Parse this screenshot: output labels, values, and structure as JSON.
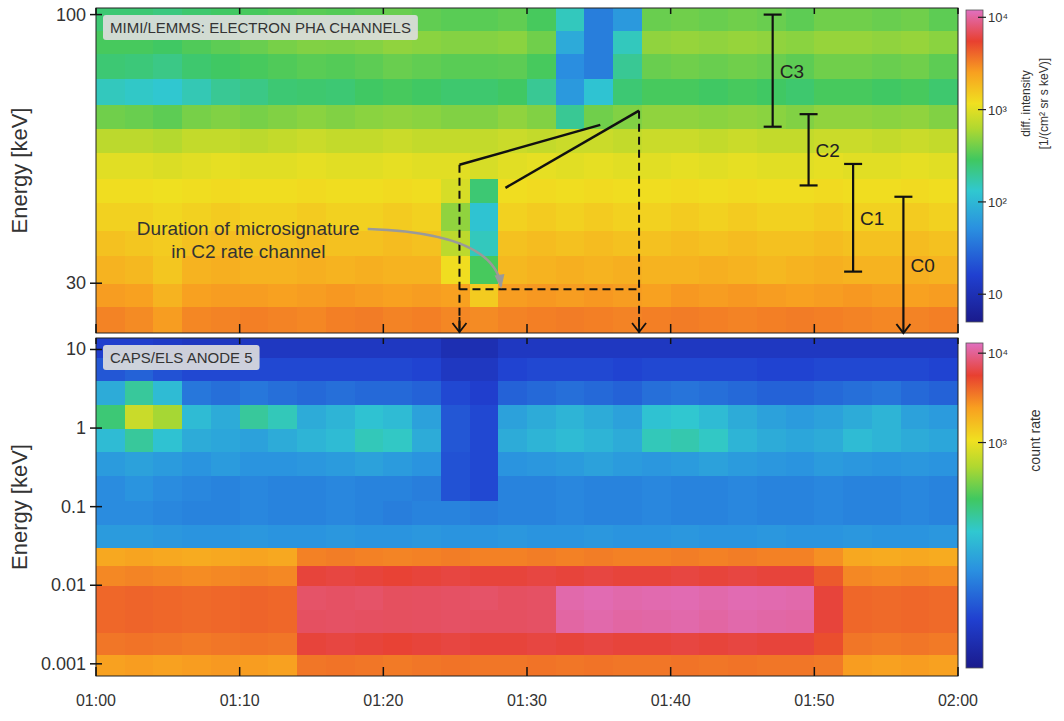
{
  "chart_data": [
    {
      "type": "heatmap",
      "title": "MIMI/LEMMS: ELECTRON PHA CHANNELS",
      "y_label": "Energy [keV]",
      "log": "y",
      "tick_labels": "y",
      "xlim": [
        0,
        60
      ],
      "xticks": [
        0,
        10,
        20,
        30,
        40,
        50,
        60
      ],
      "ylim": [
        24,
        103
      ],
      "yticks": [
        30,
        100
      ],
      "x_bins": [
        0,
        2,
        4,
        6,
        8,
        10,
        12,
        14,
        16,
        18,
        20,
        22,
        24,
        26,
        28,
        30,
        32,
        34,
        36,
        38,
        40,
        42,
        44,
        46,
        48,
        50,
        52,
        54,
        56,
        58,
        60
      ],
      "y_bins": [
        24,
        27,
        30,
        34,
        38,
        43,
        48,
        54,
        60,
        67,
        75,
        84,
        93,
        103
      ],
      "values": [
        [
          3200,
          3000,
          2600,
          3100,
          3200,
          3300,
          3200,
          3100,
          3300,
          3400,
          3200,
          3300,
          3100,
          3000,
          3200,
          3300,
          3400,
          3300,
          3200,
          3300,
          3400,
          3300,
          3200,
          3300,
          3400,
          3300,
          3200,
          3100,
          3200,
          3300
        ],
        [
          2600,
          2500,
          2000,
          2500,
          2600,
          2600,
          2500,
          2600,
          2700,
          2600,
          2500,
          2600,
          2500,
          1500,
          2600,
          2700,
          2600,
          2700,
          2600,
          2500,
          2700,
          2600,
          2700,
          2600,
          2500,
          2600,
          2700,
          2600,
          2500,
          2600
        ],
        [
          2000,
          1900,
          1600,
          2000,
          2100,
          2000,
          2000,
          2100,
          2000,
          2100,
          2000,
          2000,
          1200,
          300,
          1900,
          2000,
          2100,
          2000,
          2100,
          2000,
          2000,
          2100,
          2000,
          1900,
          2000,
          2100,
          2000,
          2000,
          2100,
          2000
        ],
        [
          1700,
          1600,
          1500,
          1700,
          1800,
          1700,
          1700,
          1800,
          1700,
          1700,
          1800,
          1700,
          700,
          150,
          1700,
          1800,
          1700,
          1800,
          1700,
          1700,
          1800,
          1700,
          1800,
          1700,
          1700,
          1800,
          1700,
          1700,
          1800,
          1700
        ],
        [
          1400,
          1400,
          1300,
          1400,
          1500,
          1400,
          1400,
          1500,
          1400,
          1400,
          1500,
          1400,
          500,
          120,
          1400,
          1500,
          1400,
          1500,
          1400,
          1400,
          1500,
          1400,
          1500,
          1400,
          1400,
          1500,
          1400,
          1400,
          1500,
          1400
        ],
        [
          1200,
          1200,
          1150,
          1200,
          1250,
          1200,
          1200,
          1250,
          1200,
          1200,
          1250,
          1200,
          900,
          250,
          1200,
          1250,
          1200,
          1250,
          1200,
          1200,
          1250,
          1200,
          1250,
          1200,
          1200,
          1250,
          1200,
          1200,
          1250,
          1200
        ],
        [
          1000,
          1000,
          950,
          1000,
          1050,
          1000,
          1000,
          1050,
          1000,
          1000,
          1050,
          1000,
          1000,
          900,
          1000,
          1050,
          1000,
          1050,
          1000,
          1000,
          1050,
          1000,
          1050,
          1000,
          1000,
          1050,
          1000,
          1000,
          1050,
          1000
        ],
        [
          700,
          700,
          650,
          750,
          750,
          700,
          750,
          800,
          750,
          750,
          800,
          750,
          750,
          750,
          800,
          750,
          800,
          800,
          750,
          800,
          800,
          750,
          800,
          750,
          750,
          800,
          800,
          750,
          800,
          750
        ],
        [
          400,
          380,
          350,
          420,
          450,
          420,
          450,
          480,
          450,
          480,
          500,
          480,
          450,
          450,
          500,
          450,
          200,
          400,
          450,
          500,
          500,
          480,
          500,
          480,
          450,
          500,
          500,
          480,
          500,
          450
        ],
        [
          150,
          140,
          130,
          160,
          200,
          220,
          250,
          260,
          250,
          280,
          300,
          280,
          260,
          260,
          280,
          200,
          60,
          120,
          250,
          300,
          300,
          280,
          300,
          280,
          260,
          300,
          300,
          280,
          300,
          260
        ],
        [
          250,
          240,
          220,
          260,
          280,
          300,
          320,
          340,
          330,
          350,
          380,
          360,
          340,
          340,
          350,
          300,
          50,
          40,
          200,
          380,
          400,
          380,
          400,
          380,
          350,
          400,
          400,
          380,
          400,
          350
        ],
        [
          300,
          300,
          280,
          320,
          350,
          380,
          420,
          450,
          440,
          460,
          500,
          480,
          460,
          460,
          480,
          400,
          80,
          40,
          150,
          500,
          520,
          500,
          520,
          500,
          480,
          520,
          520,
          500,
          520,
          480
        ],
        [
          250,
          250,
          230,
          260,
          280,
          300,
          320,
          340,
          330,
          350,
          380,
          360,
          340,
          340,
          360,
          300,
          150,
          40,
          60,
          380,
          400,
          380,
          400,
          380,
          350,
          400,
          400,
          380,
          400,
          350
        ]
      ],
      "color_range": [
        5,
        12000
      ],
      "color_ticks": [
        10,
        {
          "value": 100,
          "label": "10²"
        },
        {
          "value": 1000,
          "label": "10³"
        },
        {
          "value": 10000,
          "label": "10⁴"
        }
      ],
      "color_label": [
        "diff. intensity",
        "[1/(cm² sr s keV)]"
      ],
      "channels": [
        {
          "name": "C3",
          "x": 47.1,
          "range": [
            60.5,
            100
          ]
        },
        {
          "name": "C2",
          "x": 49.6,
          "range": [
            46.5,
            64
          ]
        },
        {
          "name": "C1",
          "x": 52.7,
          "range": [
            31.6,
            51.2
          ]
        },
        {
          "name": "C0",
          "x": 56.2,
          "range": [
            24,
            44.2
          ]
        }
      ],
      "microsignature": {
        "text": [
          "Duration of microsignature",
          "in C2 rate channel"
        ],
        "text_at": [
          10.6,
          36.5
        ],
        "arrow_to": [
          28.2,
          29.4
        ],
        "x": [
          25.3,
          37.8
        ],
        "y_bottom": 29.2,
        "y_top": [
          51,
          65
        ],
        "lines": [
          [
            [
              25.3,
              51
            ],
            [
              35.1,
              61
            ]
          ],
          [
            [
              28.5,
              46
            ],
            [
              37.8,
              65
            ]
          ]
        ]
      }
    },
    {
      "type": "heatmap",
      "title": "CAPS/ELS ANODE 5",
      "y_label": "Energy [keV]",
      "log": "y",
      "tick_labels": true,
      "xlim": [
        0,
        60
      ],
      "xticks": [
        {
          "value": 0,
          "label": "01:00"
        },
        {
          "value": 10,
          "label": "01:10"
        },
        {
          "value": 20,
          "label": "01:20"
        },
        {
          "value": 30,
          "label": "01:30"
        },
        {
          "value": 40,
          "label": "01:40"
        },
        {
          "value": 50,
          "label": "01:50"
        },
        {
          "value": 60,
          "label": "02:00"
        }
      ],
      "ylim": [
        0.0007,
        14
      ],
      "yticks": [
        0.001,
        0.01,
        0.1,
        1,
        10
      ],
      "x_bins": [
        0,
        2,
        4,
        6,
        8,
        10,
        12,
        14,
        16,
        18,
        20,
        22,
        24,
        26,
        28,
        30,
        32,
        34,
        36,
        38,
        40,
        42,
        44,
        46,
        48,
        50,
        52,
        54,
        56,
        58,
        60
      ],
      "y_bins": [
        0.0007,
        0.0013,
        0.0025,
        0.005,
        0.01,
        0.018,
        0.03,
        0.06,
        0.12,
        0.25,
        0.5,
        1,
        2,
        4,
        8,
        14
      ],
      "values": [
        [
          2400,
          2500,
          2400,
          2500,
          2600,
          2500,
          2400,
          3500,
          3600,
          3500,
          3400,
          3500,
          3600,
          3500,
          3500,
          3600,
          3500,
          3600,
          3500,
          3500,
          3600,
          3500,
          3600,
          3500,
          3500,
          3400,
          2500,
          2400,
          2500,
          2400
        ],
        [
          3500,
          3600,
          3500,
          3400,
          3500,
          3600,
          3500,
          6000,
          6200,
          6000,
          5800,
          6000,
          6200,
          6000,
          6000,
          6200,
          6000,
          6200,
          6000,
          6000,
          6200,
          6000,
          6200,
          6000,
          6000,
          5000,
          3500,
          3400,
          3500,
          3400
        ],
        [
          4000,
          4100,
          4000,
          3900,
          4000,
          4100,
          4000,
          7500,
          7600,
          7500,
          7400,
          7500,
          7600,
          7500,
          7500,
          7600,
          11000,
          11500,
          11000,
          11200,
          11500,
          11000,
          11500,
          11200,
          11000,
          6000,
          4000,
          3900,
          4000,
          3900
        ],
        [
          4000,
          4100,
          4000,
          3900,
          4000,
          4100,
          4000,
          7800,
          7600,
          7800,
          7400,
          7500,
          7600,
          7800,
          7500,
          7600,
          11500,
          12000,
          11500,
          11800,
          12000,
          11500,
          12000,
          11800,
          11500,
          6000,
          4000,
          3900,
          4000,
          3900
        ],
        [
          3000,
          3100,
          3000,
          2900,
          3000,
          3100,
          3000,
          6000,
          6200,
          6000,
          5800,
          6000,
          6200,
          6000,
          6000,
          6200,
          6000,
          6200,
          6000,
          6000,
          6200,
          6000,
          6200,
          6000,
          6000,
          4500,
          3000,
          2900,
          3000,
          2900
        ],
        [
          2200,
          2300,
          2200,
          2100,
          2200,
          2300,
          2200,
          3200,
          3300,
          3200,
          3100,
          3200,
          3300,
          3200,
          3200,
          3300,
          3200,
          3300,
          3200,
          3200,
          3300,
          3200,
          3300,
          3200,
          3200,
          2800,
          2200,
          2100,
          2200,
          2100
        ],
        [
          45,
          45,
          42,
          40,
          40,
          42,
          40,
          40,
          42,
          40,
          40,
          42,
          40,
          40,
          42,
          40,
          40,
          42,
          40,
          40,
          42,
          40,
          40,
          42,
          40,
          40,
          42,
          40,
          40,
          42
        ],
        [
          35,
          35,
          32,
          30,
          30,
          32,
          30,
          30,
          32,
          30,
          28,
          30,
          30,
          28,
          30,
          30,
          32,
          30,
          30,
          32,
          30,
          30,
          32,
          30,
          30,
          32,
          30,
          30,
          32,
          30
        ],
        [
          35,
          40,
          35,
          32,
          30,
          32,
          30,
          30,
          32,
          30,
          30,
          28,
          14,
          12,
          30,
          30,
          32,
          30,
          30,
          32,
          30,
          30,
          32,
          30,
          30,
          32,
          30,
          30,
          32,
          30
        ],
        [
          45,
          50,
          45,
          40,
          45,
          40,
          40,
          42,
          45,
          50,
          45,
          40,
          14,
          12,
          40,
          42,
          45,
          50,
          45,
          42,
          45,
          50,
          45,
          42,
          40,
          45,
          42,
          40,
          42,
          40
        ],
        [
          80,
          150,
          90,
          60,
          55,
          50,
          60,
          70,
          80,
          120,
          110,
          60,
          15,
          12,
          60,
          70,
          80,
          70,
          60,
          120,
          130,
          110,
          70,
          60,
          55,
          60,
          80,
          70,
          60,
          55
        ],
        [
          200,
          700,
          500,
          80,
          60,
          150,
          120,
          60,
          70,
          90,
          80,
          50,
          15,
          12,
          50,
          60,
          70,
          60,
          50,
          90,
          100,
          80,
          60,
          50,
          45,
          50,
          60,
          70,
          50,
          45
        ],
        [
          60,
          150,
          80,
          25,
          22,
          25,
          22,
          20,
          22,
          20,
          20,
          18,
          12,
          10,
          18,
          20,
          22,
          20,
          18,
          22,
          24,
          22,
          20,
          18,
          18,
          20,
          22,
          24,
          20,
          18
        ],
        [
          15,
          18,
          14,
          12,
          12,
          12,
          12,
          12,
          12,
          12,
          12,
          11,
          8,
          8,
          11,
          12,
          12,
          12,
          11,
          12,
          12,
          12,
          12,
          11,
          11,
          12,
          12,
          12,
          12,
          11
        ],
        [
          10,
          10,
          9,
          8,
          8,
          8,
          8,
          8,
          8,
          8,
          8,
          8,
          6,
          6,
          8,
          8,
          8,
          8,
          8,
          8,
          8,
          8,
          8,
          8,
          8,
          8,
          8,
          8,
          8,
          8
        ]
      ],
      "color_range": [
        3,
        13000
      ],
      "color_ticks": [
        {
          "value": 1000,
          "label": "10³"
        },
        {
          "value": 10000,
          "label": "10⁴"
        }
      ],
      "color_label": [
        "count rate"
      ]
    }
  ]
}
